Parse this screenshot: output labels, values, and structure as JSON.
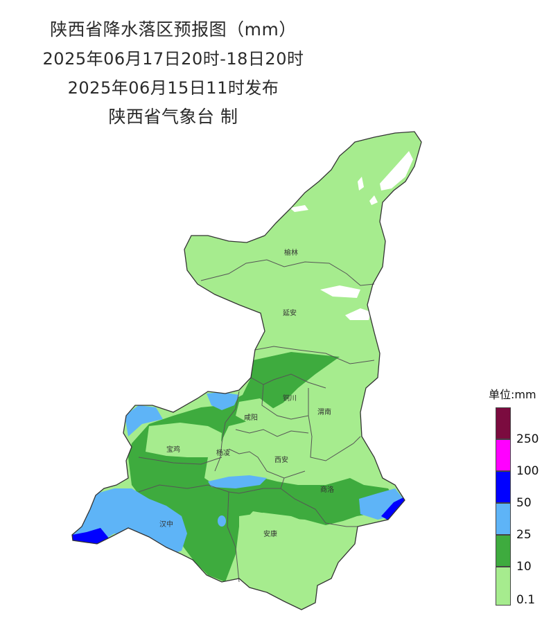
{
  "title": {
    "line1": "陕西省降水落区预报图（mm）",
    "line2": "2025年06月17日20时-18日20时",
    "line3": "2025年06月15日11时发布",
    "line4": "陕西省气象台 制"
  },
  "cities": [
    {
      "name": "榆林"
    },
    {
      "name": "延安"
    },
    {
      "name": "铜川"
    },
    {
      "name": "咸阳"
    },
    {
      "name": "渭南"
    },
    {
      "name": "宝鸡"
    },
    {
      "name": "杨凌"
    },
    {
      "name": "西安"
    },
    {
      "name": "汉中"
    },
    {
      "name": "商洛"
    },
    {
      "name": "安康"
    }
  ],
  "legend": {
    "title": "单位:mm",
    "bins": [
      {
        "label": "",
        "color": "#7b0b3f"
      },
      {
        "label": "250",
        "color": "#ff00ff"
      },
      {
        "label": "100",
        "color": "#0000ff"
      },
      {
        "label": "50",
        "color": "#5eb4f7"
      },
      {
        "label": "25",
        "color": "#3eab3e"
      },
      {
        "label": "10",
        "color": "#a6ec8e"
      }
    ],
    "bottom_label": "0.1"
  },
  "colors": {
    "light_green": "#a6ec8e",
    "green": "#3eab3e",
    "light_blue": "#5eb4f7",
    "blue": "#0000ff",
    "border": "#555555"
  }
}
